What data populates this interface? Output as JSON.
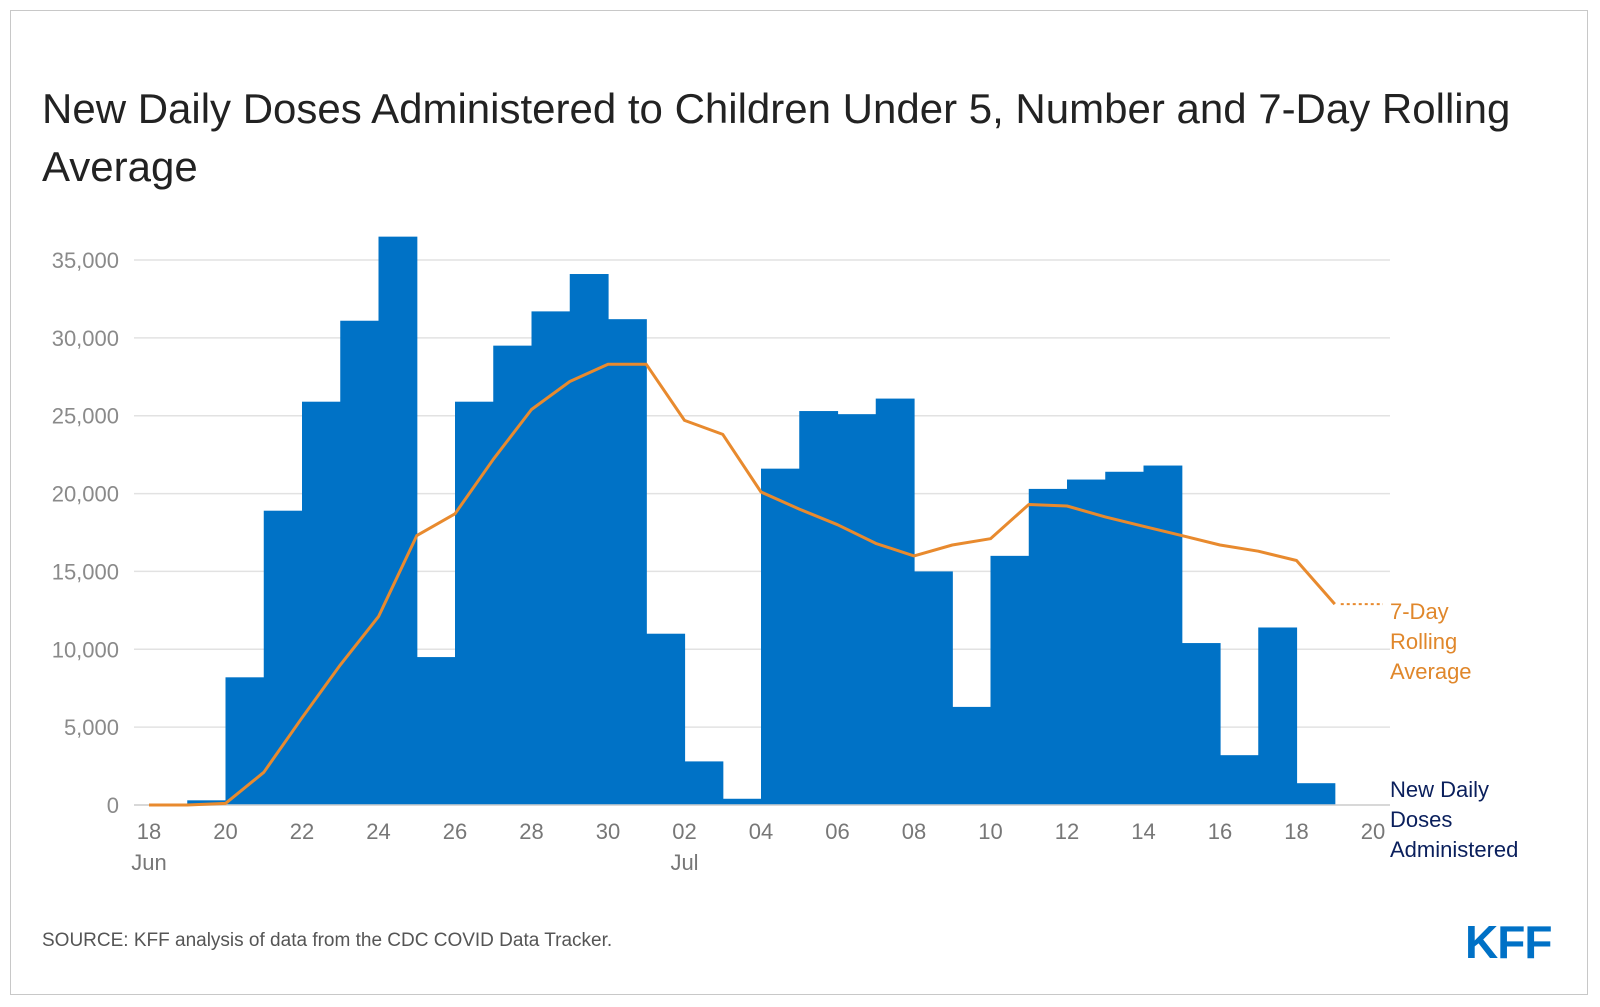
{
  "colors": {
    "bar": "#0072c6",
    "line": "#e88a2e",
    "grid": "#e2e2e2",
    "legend_bar_text": "#0a1f5c"
  },
  "header": {
    "title": "New Daily Doses Administered to Children Under 5, Number and 7-Day Rolling Average"
  },
  "footer": {
    "source": "SOURCE: KFF analysis of data from the CDC COVID Data Tracker.",
    "logo": "KFF"
  },
  "chart_data": {
    "type": "bar",
    "title": "New Daily Doses Administered to Children Under 5, Number and 7-Day Rolling Average",
    "xlabel": "",
    "ylabel": "",
    "ylim": [
      0,
      35000
    ],
    "yticks": [
      0,
      5000,
      10000,
      15000,
      20000,
      25000,
      30000,
      35000
    ],
    "ytick_labels": [
      "0",
      "5,000",
      "10,000",
      "15,000",
      "20,000",
      "25,000",
      "30,000",
      "35,000"
    ],
    "x_domain": [
      0,
      32
    ],
    "xticks": [
      {
        "day": 0,
        "label": "18",
        "sub": "Jun"
      },
      {
        "day": 2,
        "label": "20",
        "sub": ""
      },
      {
        "day": 4,
        "label": "22",
        "sub": ""
      },
      {
        "day": 6,
        "label": "24",
        "sub": ""
      },
      {
        "day": 8,
        "label": "26",
        "sub": ""
      },
      {
        "day": 10,
        "label": "28",
        "sub": ""
      },
      {
        "day": 12,
        "label": "30",
        "sub": ""
      },
      {
        "day": 14,
        "label": "02",
        "sub": "Jul"
      },
      {
        "day": 16,
        "label": "04",
        "sub": ""
      },
      {
        "day": 18,
        "label": "06",
        "sub": ""
      },
      {
        "day": 20,
        "label": "08",
        "sub": ""
      },
      {
        "day": 22,
        "label": "10",
        "sub": ""
      },
      {
        "day": 24,
        "label": "12",
        "sub": ""
      },
      {
        "day": 26,
        "label": "14",
        "sub": ""
      },
      {
        "day": 28,
        "label": "16",
        "sub": ""
      },
      {
        "day": 30,
        "label": "18",
        "sub": ""
      },
      {
        "day": 32,
        "label": "20",
        "sub": ""
      }
    ],
    "series": [
      {
        "name": "New Daily Doses Administered",
        "type": "bar",
        "start_day": 0,
        "values": [
          0,
          300,
          8200,
          18900,
          25900,
          31100,
          36500,
          9500,
          25900,
          29500,
          31700,
          34100,
          31200,
          11000,
          2800,
          400,
          21600,
          25300,
          25100,
          26100,
          15000,
          6300,
          16000,
          20300,
          20900,
          21400,
          21800,
          10400,
          3200,
          11400,
          1400
        ]
      },
      {
        "name": "7-Day Rolling Average",
        "type": "line",
        "start_day": 0,
        "values": [
          0,
          0,
          100,
          2100,
          5600,
          9000,
          12100,
          17300,
          18700,
          22200,
          25400,
          27200,
          28300,
          28300,
          24700,
          23800,
          20100,
          19000,
          18000,
          16800,
          16000,
          16700,
          17100,
          19300,
          19200,
          18500,
          17900,
          17300,
          16700,
          16300,
          15700,
          12900
        ]
      }
    ],
    "legend": {
      "line_label": [
        "7-Day",
        "Rolling",
        "Average"
      ],
      "bar_label": [
        "New Daily",
        "Doses",
        "Administered"
      ],
      "placement": "right, at series ends"
    }
  }
}
